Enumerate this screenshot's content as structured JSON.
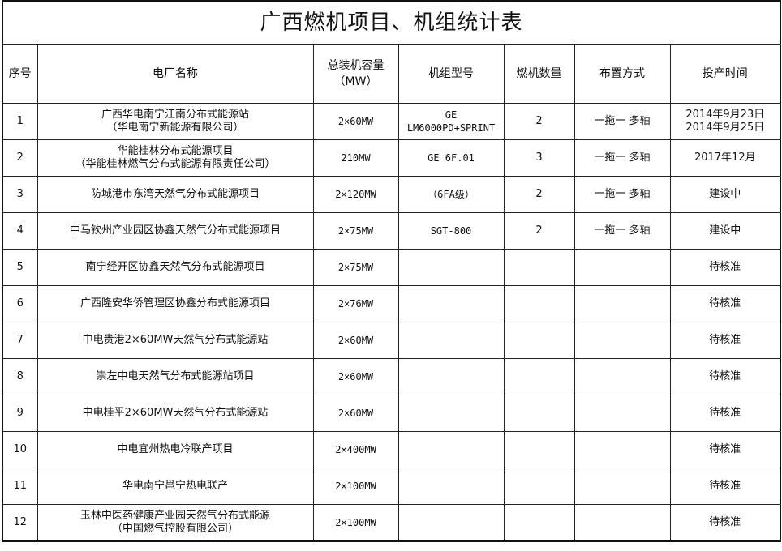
{
  "title": "广西燃机项目、机组统计表",
  "headers": [
    "序号",
    "电厂名称",
    "总装机容量（MW）",
    "机组型号",
    "燃机数量",
    "布置方式",
    "投产时间"
  ],
  "rows": [
    {
      "no": "1",
      "name": "广西华电南宁江南分布式能源站",
      "name2": "（华电南宁新能源有限公司）",
      "capacity": "2×60MW",
      "model": "GE",
      "model2": "LM6000PD+SPRINT",
      "count": "2",
      "layout": "一拖一 多轴",
      "date": "2014年9月23日",
      "date2": "2014年9月25日"
    },
    {
      "no": "2",
      "name": "华能桂林分布式能源项目",
      "name2": "（华能桂林燃气分布式能源有限责任公司）",
      "capacity": "210MW",
      "model": "GE 6F.01",
      "model2": "",
      "count": "3",
      "layout": "一拖一 多轴",
      "date": "2017年12月",
      "date2": ""
    },
    {
      "no": "3",
      "name": "防城港市东湾天然气分布式能源项目",
      "name2": "",
      "capacity": "2×120MW",
      "model": "（6FA级）",
      "model2": "",
      "count": "2",
      "layout": "一拖一 多轴",
      "date": "建设中",
      "date2": ""
    },
    {
      "no": "4",
      "name": "中马钦州产业园区协鑫天然气分布式能源项目",
      "name2": "",
      "capacity": "2×75MW",
      "model": "SGT-800",
      "model2": "",
      "count": "2",
      "layout": "一拖一 多轴",
      "date": "建设中",
      "date2": ""
    },
    {
      "no": "5",
      "name": "南宁经开区协鑫天然气分布式能源项目",
      "name2": "",
      "capacity": "2×75MW",
      "model": "",
      "model2": "",
      "count": "",
      "layout": "",
      "date": "待核准",
      "date2": ""
    },
    {
      "no": "6",
      "name": "广西隆安华侨管理区协鑫分布式能源项目",
      "name2": "",
      "capacity": "2×76MW",
      "model": "",
      "model2": "",
      "count": "",
      "layout": "",
      "date": "待核准",
      "date2": ""
    },
    {
      "no": "7",
      "name": "中电贵港2×60MW天然气分布式能源站",
      "name2": "",
      "capacity": "2×60MW",
      "model": "",
      "model2": "",
      "count": "",
      "layout": "",
      "date": "待核准",
      "date2": ""
    },
    {
      "no": "8",
      "name": "崇左中电天然气分布式能源站项目",
      "name2": "",
      "capacity": "2×60MW",
      "model": "",
      "model2": "",
      "count": "",
      "layout": "",
      "date": "待核准",
      "date2": ""
    },
    {
      "no": "9",
      "name": "中电桂平2×60MW天然气分布式能源站",
      "name2": "",
      "capacity": "2×60MW",
      "model": "",
      "model2": "",
      "count": "",
      "layout": "",
      "date": "待核准",
      "date2": ""
    },
    {
      "no": "10",
      "name": "中电宜州热电冷联产项目",
      "name2": "",
      "capacity": "2×400MW",
      "model": "",
      "model2": "",
      "count": "",
      "layout": "",
      "date": "待核准",
      "date2": ""
    },
    {
      "no": "11",
      "name": "华电南宁邕宁热电联产",
      "name2": "",
      "capacity": "2×100MW",
      "model": "",
      "model2": "",
      "count": "",
      "layout": "",
      "date": "待核准",
      "date2": ""
    },
    {
      "no": "12",
      "name": "玉林中医药健康产业园天然气分布式能源",
      "name2": "（中国燃气控股有限公司）",
      "capacity": "2×100MW",
      "model": "",
      "model2": "",
      "count": "",
      "layout": "",
      "date": "待核准",
      "date2": ""
    }
  ]
}
